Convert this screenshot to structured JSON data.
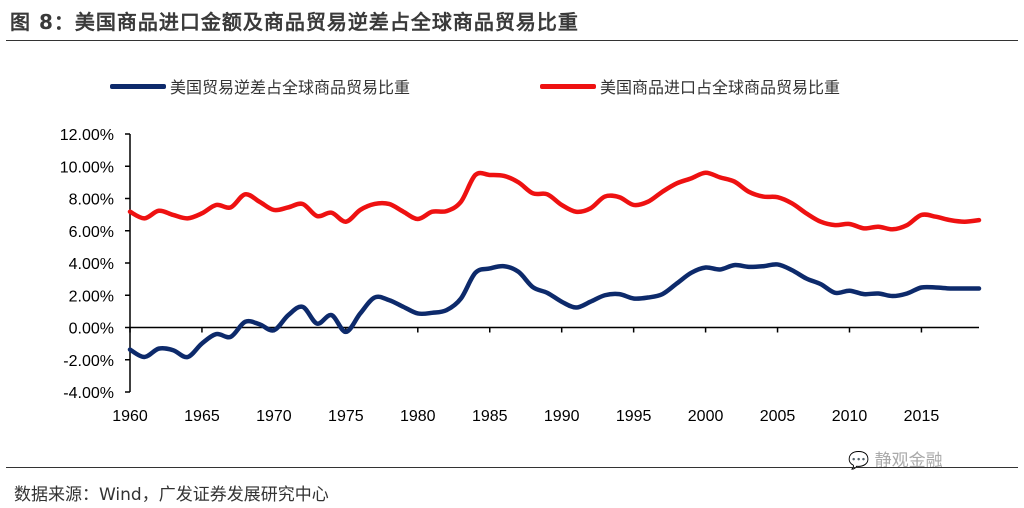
{
  "title": "图 8：美国商品进口金额及商品贸易逆差占全球商品贸易比重",
  "source": "数据来源：Wind，广发证券发展研究中心",
  "watermark": "静观金融",
  "chart_data": {
    "type": "line",
    "title": "",
    "xlabel": "",
    "ylabel": "",
    "legend_position": "top",
    "grid": false,
    "xlim": [
      1960,
      2019
    ],
    "ylim": [
      -4,
      12
    ],
    "x_ticks": [
      "1960",
      "1965",
      "1970",
      "1975",
      "1980",
      "1985",
      "1990",
      "1995",
      "2000",
      "2005",
      "2010",
      "2015"
    ],
    "y_ticks": [
      "12.00%",
      "10.00%",
      "8.00%",
      "6.00%",
      "4.00%",
      "2.00%",
      "0.00%",
      "-2.00%",
      "-4.00%"
    ],
    "x": [
      1960,
      1961,
      1962,
      1963,
      1964,
      1965,
      1966,
      1967,
      1968,
      1969,
      1970,
      1971,
      1972,
      1973,
      1974,
      1975,
      1976,
      1977,
      1978,
      1979,
      1980,
      1981,
      1982,
      1983,
      1984,
      1985,
      1986,
      1987,
      1988,
      1989,
      1990,
      1991,
      1992,
      1993,
      1994,
      1995,
      1996,
      1997,
      1998,
      1999,
      2000,
      2001,
      2002,
      2003,
      2004,
      2005,
      2006,
      2007,
      2008,
      2009,
      2010,
      2011,
      2012,
      2013,
      2014,
      2015,
      2016,
      2017,
      2018,
      2019
    ],
    "series": [
      {
        "name": "美国贸易逆差占全球商品贸易比重",
        "color": "#0d2a6b",
        "values": [
          -1.37,
          -1.83,
          -1.31,
          -1.41,
          -1.83,
          -0.99,
          -0.41,
          -0.58,
          0.35,
          0.2,
          -0.17,
          0.77,
          1.28,
          0.24,
          0.77,
          -0.27,
          0.87,
          1.86,
          1.7,
          1.28,
          0.87,
          0.91,
          1.08,
          1.8,
          3.39,
          3.66,
          3.8,
          3.45,
          2.5,
          2.15,
          1.6,
          1.24,
          1.6,
          2.0,
          2.07,
          1.8,
          1.86,
          2.07,
          2.73,
          3.39,
          3.72,
          3.6,
          3.87,
          3.76,
          3.8,
          3.91,
          3.56,
          3.04,
          2.69,
          2.15,
          2.28,
          2.07,
          2.11,
          1.95,
          2.11,
          2.48,
          2.48,
          2.42,
          2.42,
          2.42
        ]
      },
      {
        "name": "美国商品进口占全球商品贸易比重",
        "color": "#ee1111",
        "values": [
          7.18,
          6.77,
          7.24,
          6.98,
          6.77,
          7.08,
          7.6,
          7.45,
          8.26,
          7.8,
          7.29,
          7.45,
          7.66,
          6.91,
          7.12,
          6.56,
          7.29,
          7.66,
          7.66,
          7.18,
          6.73,
          7.18,
          7.22,
          7.8,
          9.46,
          9.46,
          9.4,
          9.0,
          8.32,
          8.26,
          7.6,
          7.18,
          7.39,
          8.12,
          8.08,
          7.6,
          7.8,
          8.42,
          8.94,
          9.25,
          9.6,
          9.31,
          9.05,
          8.42,
          8.12,
          8.08,
          7.7,
          7.08,
          6.56,
          6.35,
          6.42,
          6.15,
          6.25,
          6.09,
          6.35,
          6.98,
          6.87,
          6.66,
          6.56,
          6.66
        ]
      }
    ]
  }
}
